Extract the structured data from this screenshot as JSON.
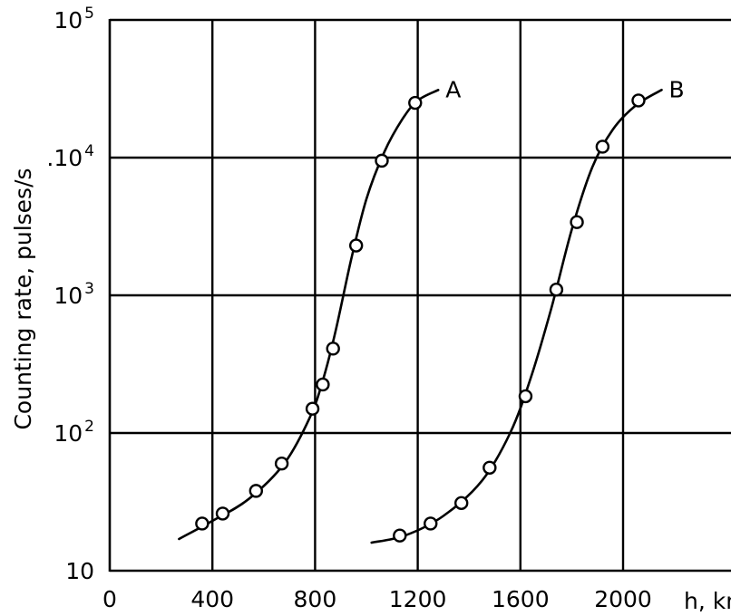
{
  "chart_data": {
    "type": "scatter",
    "ylabel": "Counting rate, pulses/s",
    "xlabel": "h, km",
    "x_scale": "linear",
    "y_scale": "log",
    "xlim": [
      0,
      2400
    ],
    "ylim": [
      10,
      100000
    ],
    "grid": true,
    "x_ticks": [
      {
        "value": 0,
        "label": "0"
      },
      {
        "value": 400,
        "label": "400"
      },
      {
        "value": 800,
        "label": "800"
      },
      {
        "value": 1200,
        "label": "1200"
      },
      {
        "value": 1600,
        "label": "1600"
      },
      {
        "value": 2000,
        "label": "2000"
      }
    ],
    "y_ticks": [
      {
        "value": 10,
        "base": "10",
        "exp": ""
      },
      {
        "value": 100,
        "base": "10",
        "exp": "2"
      },
      {
        "value": 1000,
        "base": "10",
        "exp": "3"
      },
      {
        "value": 10000,
        "base": ".10",
        "exp": "4"
      },
      {
        "value": 100000,
        "base": "10",
        "exp": "5"
      }
    ],
    "series": [
      {
        "name": "A",
        "points": [
          {
            "x": 360,
            "y": 22
          },
          {
            "x": 440,
            "y": 26
          },
          {
            "x": 570,
            "y": 38
          },
          {
            "x": 670,
            "y": 60
          },
          {
            "x": 790,
            "y": 150
          },
          {
            "x": 830,
            "y": 225
          },
          {
            "x": 870,
            "y": 410
          },
          {
            "x": 960,
            "y": 2300
          },
          {
            "x": 1060,
            "y": 9500
          },
          {
            "x": 1190,
            "y": 25000
          }
        ],
        "curve": [
          {
            "x": 270,
            "y": 17
          },
          {
            "x": 400,
            "y": 23
          },
          {
            "x": 540,
            "y": 33
          },
          {
            "x": 680,
            "y": 60
          },
          {
            "x": 780,
            "y": 130
          },
          {
            "x": 830,
            "y": 240
          },
          {
            "x": 880,
            "y": 550
          },
          {
            "x": 940,
            "y": 1800
          },
          {
            "x": 1000,
            "y": 5000
          },
          {
            "x": 1070,
            "y": 11000
          },
          {
            "x": 1140,
            "y": 19000
          },
          {
            "x": 1200,
            "y": 26000
          },
          {
            "x": 1280,
            "y": 31000
          }
        ]
      },
      {
        "name": "B",
        "points": [
          {
            "x": 1130,
            "y": 18
          },
          {
            "x": 1250,
            "y": 22
          },
          {
            "x": 1370,
            "y": 31
          },
          {
            "x": 1480,
            "y": 56
          },
          {
            "x": 1620,
            "y": 185
          },
          {
            "x": 1740,
            "y": 1100
          },
          {
            "x": 1820,
            "y": 3400
          },
          {
            "x": 1920,
            "y": 12000
          },
          {
            "x": 2060,
            "y": 26000
          }
        ],
        "curve": [
          {
            "x": 1020,
            "y": 16
          },
          {
            "x": 1150,
            "y": 18
          },
          {
            "x": 1300,
            "y": 25
          },
          {
            "x": 1450,
            "y": 45
          },
          {
            "x": 1560,
            "y": 100
          },
          {
            "x": 1640,
            "y": 250
          },
          {
            "x": 1720,
            "y": 800
          },
          {
            "x": 1800,
            "y": 3000
          },
          {
            "x": 1880,
            "y": 8500
          },
          {
            "x": 1960,
            "y": 16000
          },
          {
            "x": 2050,
            "y": 24000
          },
          {
            "x": 2150,
            "y": 31000
          }
        ]
      }
    ]
  }
}
